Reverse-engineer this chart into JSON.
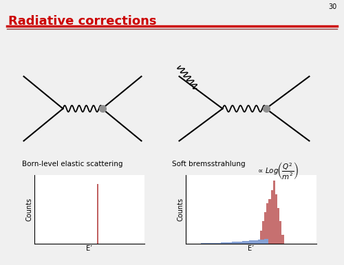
{
  "title": "Radiative corrections",
  "title_color": "#cc0000",
  "sep_color1": "#cc0000",
  "sep_color2": "#8b3a3a",
  "background_color": "#f0f0f0",
  "page_number": "30",
  "label_born": "Born-level elastic scattering",
  "label_soft": "Soft bremsstrahlung",
  "xlabel": "E’",
  "ylabel": "Counts",
  "hist1_color": "#c06060",
  "hist2_red_color": "#c06060",
  "hist2_blue_color": "#7090cc",
  "font_size_title": 13,
  "font_size_label": 7.5,
  "font_size_axis": 7,
  "font_size_page": 7
}
